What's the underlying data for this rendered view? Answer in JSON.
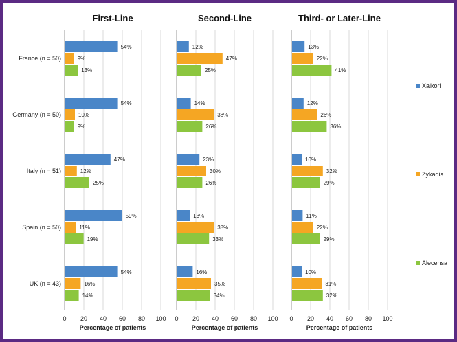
{
  "chart_data": {
    "type": "bar",
    "orientation": "horizontal",
    "categories": [
      "France (n = 50)",
      "Germany (n = 50)",
      "Italy (n = 51)",
      "Spain (n = 50)",
      "UK (n = 43)"
    ],
    "series_names": [
      "Xalkori",
      "Zykadia",
      "Alecensa"
    ],
    "colors": [
      "#4a86c8",
      "#f5a623",
      "#8cc63f"
    ],
    "xlim": [
      0,
      100
    ],
    "xticks": [
      0,
      20,
      40,
      60,
      80,
      100
    ],
    "xlabel": "Percentage of patients",
    "grid": true,
    "legend_position": "right",
    "panels": [
      {
        "title": "First-Line",
        "series": [
          {
            "name": "Xalkori",
            "values": [
              54,
              54,
              47,
              59,
              54
            ]
          },
          {
            "name": "Zykadia",
            "values": [
              9,
              10,
              12,
              11,
              16
            ]
          },
          {
            "name": "Alecensa",
            "values": [
              13,
              9,
              25,
              19,
              14
            ]
          }
        ]
      },
      {
        "title": "Second-Line",
        "series": [
          {
            "name": "Xalkori",
            "values": [
              12,
              14,
              23,
              13,
              16
            ]
          },
          {
            "name": "Zykadia",
            "values": [
              47,
              38,
              30,
              38,
              35
            ]
          },
          {
            "name": "Alecensa",
            "values": [
              25,
              26,
              26,
              33,
              34
            ]
          }
        ]
      },
      {
        "title": "Third- or Later-Line",
        "series": [
          {
            "name": "Xalkori",
            "values": [
              13,
              12,
              10,
              11,
              10
            ]
          },
          {
            "name": "Zykadia",
            "values": [
              22,
              26,
              32,
              22,
              31
            ]
          },
          {
            "name": "Alecensa",
            "values": [
              41,
              36,
              29,
              29,
              32
            ]
          }
        ]
      }
    ]
  }
}
